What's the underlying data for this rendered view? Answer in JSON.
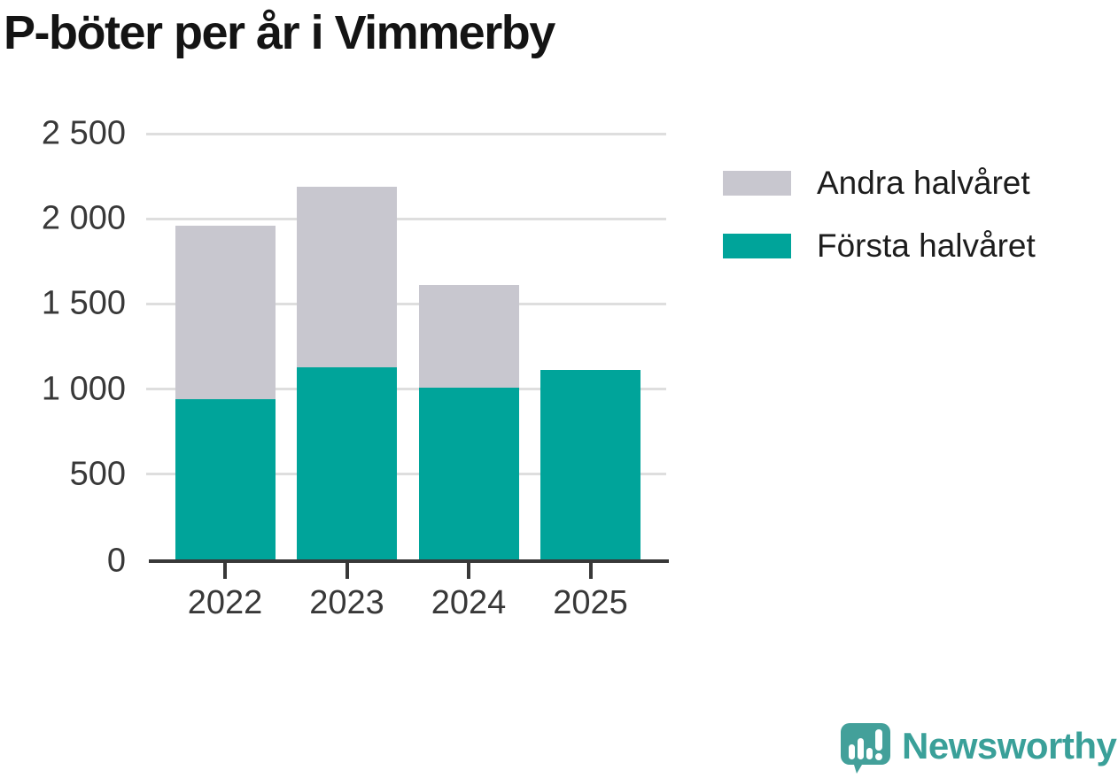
{
  "title": "P-böter per år i Vimmerby",
  "chart_data": {
    "type": "bar",
    "stacked": true,
    "title": "P-böter per år i Vimmerby",
    "categories": [
      "2022",
      "2023",
      "2024",
      "2025"
    ],
    "series": [
      {
        "name": "Första halvåret",
        "color": "#00a49a",
        "values": [
          940,
          1130,
          1010,
          1110
        ]
      },
      {
        "name": "Andra halvåret",
        "color": "#c8c7cf",
        "values": [
          1020,
          1060,
          600,
          0
        ]
      }
    ],
    "totals": [
      1960,
      2190,
      1610,
      1110
    ],
    "ylim": [
      0,
      2500
    ],
    "yticks": [
      {
        "value": 0,
        "label": "0"
      },
      {
        "value": 500,
        "label": "500"
      },
      {
        "value": 1000,
        "label": "1 000"
      },
      {
        "value": 1500,
        "label": "1 500"
      },
      {
        "value": 2000,
        "label": "2 000"
      },
      {
        "value": 2500,
        "label": "2 500"
      }
    ],
    "xlabel": "",
    "ylabel": "",
    "grid": true,
    "legend_position": "right"
  },
  "legend": {
    "items": [
      {
        "label": "Andra halvåret",
        "color": "#c8c7cf"
      },
      {
        "label": "Första halvåret",
        "color": "#00a49a"
      }
    ]
  },
  "branding": {
    "wordmark": "Newsworthy",
    "icon": "newsworthy-speech-bubble-chart-icon",
    "color": "#3aa099",
    "icon_color": "#43a09a"
  },
  "colors": {
    "background": "#ffffff",
    "gridline": "#dedede",
    "axis": "#383838",
    "tick_label": "#383838",
    "title_text": "#141414",
    "legend_text": "#1d1d1d"
  }
}
